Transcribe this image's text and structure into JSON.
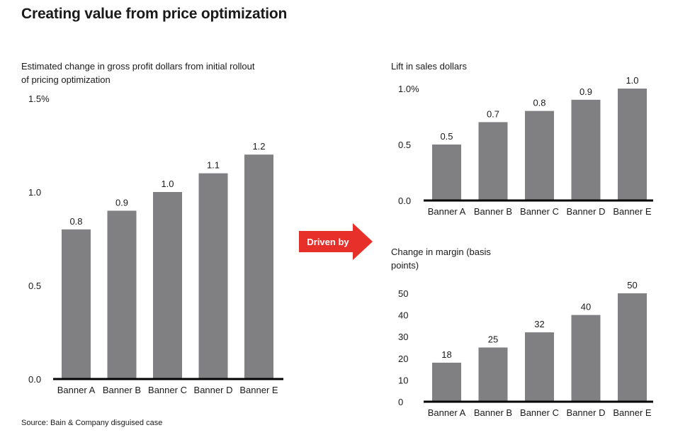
{
  "title": "Creating value from price optimization",
  "source": "Source: Bain & Company disguised case",
  "arrow_label": "Driven by",
  "colors": {
    "bar": "#808083",
    "arrow": "#e8302b",
    "axis": "#000000"
  },
  "chart_data": [
    {
      "type": "bar",
      "subtitle": "Estimated change in gross profit dollars from initial rollout of pricing optimization",
      "categories": [
        "Banner A",
        "Banner B",
        "Banner C",
        "Banner D",
        "Banner E"
      ],
      "values": [
        0.8,
        0.9,
        1.0,
        1.1,
        1.2
      ],
      "value_labels": [
        "0.8",
        "0.9",
        "1.0",
        "1.1",
        "1.2"
      ],
      "ylim": [
        0,
        1.5
      ],
      "yticks": [
        {
          "value": 0,
          "label": "0.0"
        },
        {
          "value": 0.5,
          "label": "0.5"
        },
        {
          "value": 1.0,
          "label": "1.0"
        },
        {
          "value": 1.5,
          "label": "1.5%"
        }
      ]
    },
    {
      "type": "bar",
      "subtitle": "Lift in sales dollars",
      "categories": [
        "Banner A",
        "Banner B",
        "Banner C",
        "Banner D",
        "Banner E"
      ],
      "values": [
        0.5,
        0.7,
        0.8,
        0.9,
        1.0
      ],
      "value_labels": [
        "0.5",
        "0.7",
        "0.8",
        "0.9",
        "1.0"
      ],
      "ylim": [
        0,
        1.0
      ],
      "yticks": [
        {
          "value": 0,
          "label": "0.0"
        },
        {
          "value": 0.5,
          "label": "0.5"
        },
        {
          "value": 1.0,
          "label": "1.0%"
        }
      ]
    },
    {
      "type": "bar",
      "subtitle": "Change in margin (basis points)",
      "categories": [
        "Banner A",
        "Banner B",
        "Banner C",
        "Banner D",
        "Banner E"
      ],
      "values": [
        18,
        25,
        32,
        40,
        50
      ],
      "value_labels": [
        "18",
        "25",
        "32",
        "40",
        "50"
      ],
      "ylim": [
        0,
        50
      ],
      "yticks": [
        {
          "value": 0,
          "label": "0"
        },
        {
          "value": 10,
          "label": "10"
        },
        {
          "value": 20,
          "label": "20"
        },
        {
          "value": 30,
          "label": "30"
        },
        {
          "value": 40,
          "label": "40"
        },
        {
          "value": 50,
          "label": "50"
        }
      ]
    }
  ]
}
